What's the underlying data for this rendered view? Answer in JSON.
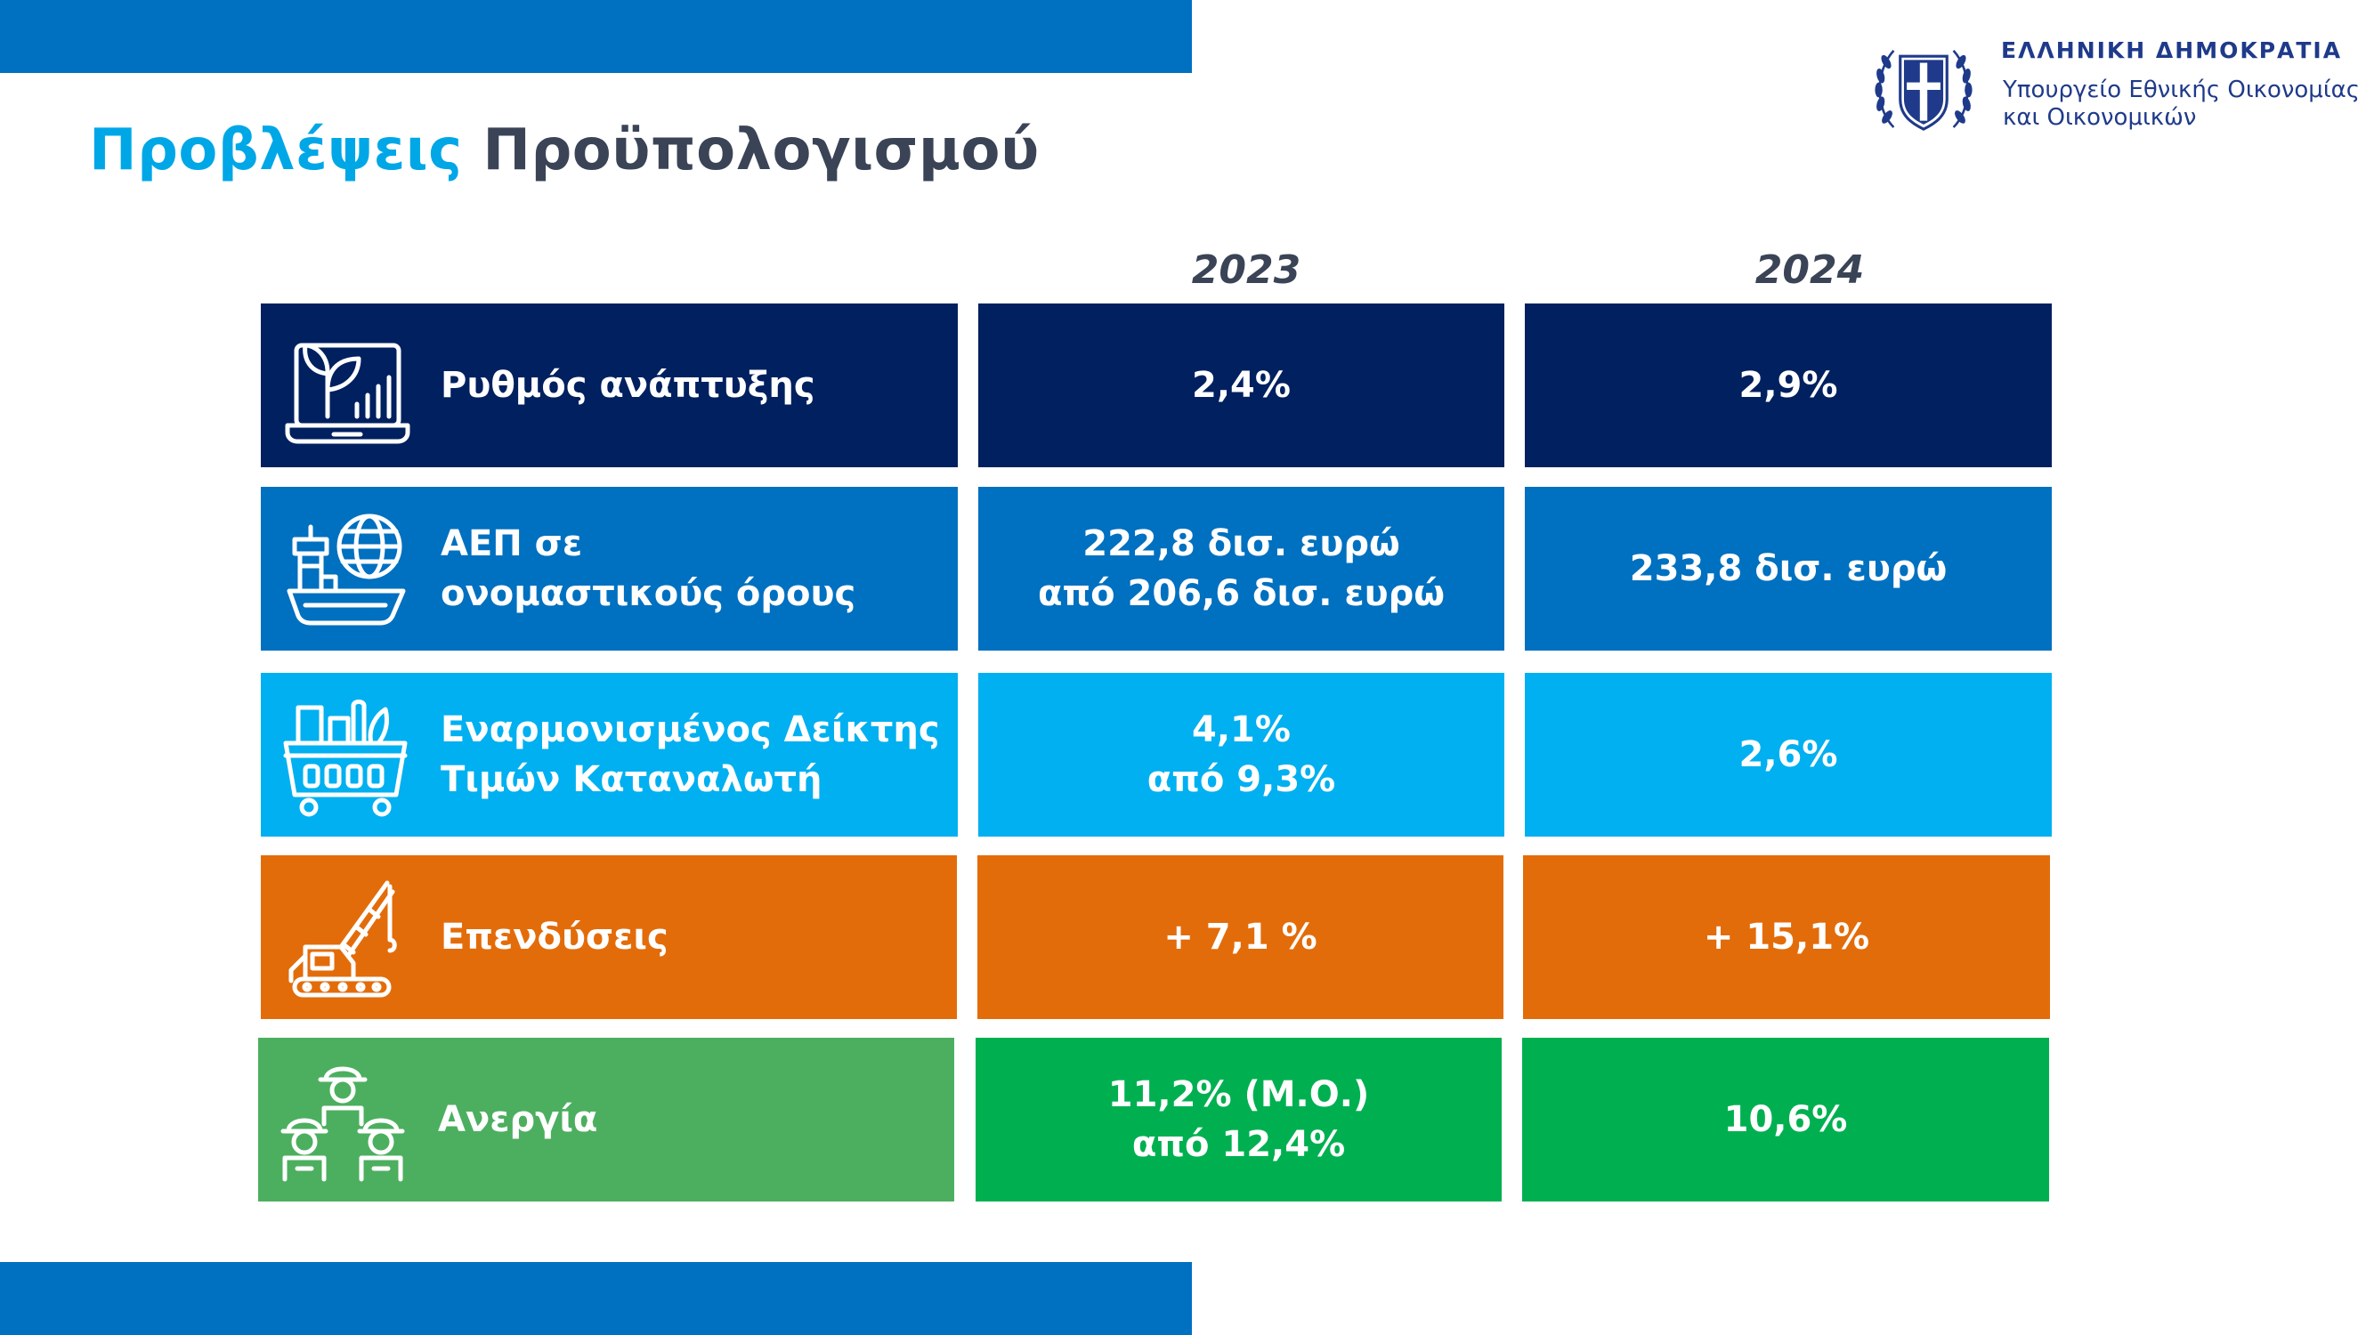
{
  "header": {
    "title_part1": "Προβλέψεις",
    "title_part2": "Προϋπολογισμού"
  },
  "ministry": {
    "name_top": "ΕΛΛΗΝΙΚΗ ΔΗΜΟΚΡΑΤΙΑ",
    "line1": "Υπουργείο Εθνικής Οικονομίας",
    "line2": "και Οικονομικών",
    "emblem_icon": "greek-coat-of-arms-icon"
  },
  "years": [
    "2023",
    "2024"
  ],
  "rows": [
    {
      "label_lines": [
        "Ρυθμός ανάπτυξης"
      ],
      "icon": "growth-chart-icon",
      "color": "#002060",
      "y2023_lines": [
        "2,4%"
      ],
      "y2024_lines": [
        "2,9%"
      ]
    },
    {
      "label_lines": [
        "ΑΕΠ σε",
        "ονομαστικούς όρους"
      ],
      "icon": "globe-ship-icon",
      "color": "#0070c0",
      "y2023_lines": [
        "222,8 δισ. ευρώ",
        "από 206,6 δισ. ευρώ"
      ],
      "y2024_lines": [
        "233,8 δισ. ευρώ"
      ]
    },
    {
      "label_lines": [
        "Εναρμονισμένος Δείκτης",
        "Τιμών Καταναλωτή"
      ],
      "icon": "shopping-basket-icon",
      "color": "#00b0f0",
      "y2023_lines": [
        "4,1%",
        "από 9,3%"
      ],
      "y2024_lines": [
        "2,6%"
      ]
    },
    {
      "label_lines": [
        "Επενδύσεις"
      ],
      "icon": "excavator-crane-icon",
      "color": "#e36c0a",
      "y2023_lines": [
        "+ 7,1 %"
      ],
      "y2024_lines": [
        "+ 15,1%"
      ]
    },
    {
      "label_lines": [
        "Ανεργία"
      ],
      "icon": "workers-group-icon",
      "color_label": "#4caf5f",
      "color": "#00b050",
      "y2023_lines": [
        "11,2% (Μ.Ο.)",
        "από 12,4%"
      ],
      "y2024_lines": [
        "10,6%"
      ]
    }
  ]
}
